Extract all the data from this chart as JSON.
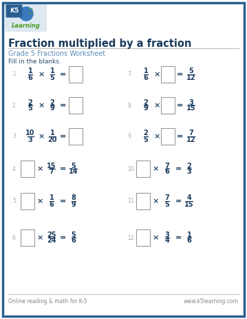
{
  "title": "Fraction multiplied by a fraction",
  "subtitle": "Grade 5 Fractions Worksheet",
  "instruction": "Fill in the blanks.",
  "border_color": "#2a5f8f",
  "title_color": "#1a3a5c",
  "subtitle_color": "#5b8db8",
  "text_color": "#2b4a6a",
  "number_color": "#aaaaaa",
  "frac_color": "#1a3a5c",
  "footer_left": "Online reading & math for K-5",
  "footer_right": "www.k5learning.com",
  "footer_color": "#888888",
  "bg_color": "#ffffff",
  "fig_width": 3.59,
  "fig_height": 4.63,
  "dpi": 100,
  "problems": [
    {
      "num": "1",
      "type": "compute",
      "left_num": "1",
      "left_den": "6",
      "right_num": "1",
      "right_den": "5",
      "col": 0,
      "row": 0
    },
    {
      "num": "2",
      "type": "compute",
      "left_num": "2",
      "left_den": "5",
      "right_num": "2",
      "right_den": "9",
      "col": 0,
      "row": 1
    },
    {
      "num": "3",
      "type": "compute",
      "left_num": "10",
      "left_den": "3",
      "right_num": "1",
      "right_den": "20",
      "col": 0,
      "row": 2
    },
    {
      "num": "4",
      "type": "missing_left",
      "known_num": "15",
      "known_den": "7",
      "result_num": "5",
      "result_den": "14",
      "col": 0,
      "row": 3
    },
    {
      "num": "5",
      "type": "missing_left",
      "known_num": "1",
      "known_den": "6",
      "result_num": "8",
      "result_den": "9",
      "col": 0,
      "row": 4
    },
    {
      "num": "6",
      "type": "missing_left",
      "known_num": "25",
      "known_den": "24",
      "result_num": "5",
      "result_den": "6",
      "col": 0,
      "row": 5
    },
    {
      "num": "7",
      "type": "missing_right",
      "left_num": "1",
      "left_den": "6",
      "result_num": "5",
      "result_den": "12",
      "col": 1,
      "row": 0
    },
    {
      "num": "8",
      "type": "missing_right",
      "left_num": "2",
      "left_den": "9",
      "result_num": "3",
      "result_den": "15",
      "col": 1,
      "row": 1
    },
    {
      "num": "9",
      "type": "missing_right",
      "left_num": "2",
      "left_den": "5",
      "result_num": "7",
      "result_den": "12",
      "col": 1,
      "row": 2
    },
    {
      "num": "10",
      "type": "missing_left",
      "known_num": "7",
      "known_den": "6",
      "result_num": "2",
      "result_den": "3",
      "col": 1,
      "row": 3
    },
    {
      "num": "11",
      "type": "missing_left",
      "known_num": "7",
      "known_den": "5",
      "result_num": "4",
      "result_den": "15",
      "col": 1,
      "row": 4
    },
    {
      "num": "12",
      "type": "missing_left",
      "known_num": "3",
      "known_den": "4",
      "result_num": "1",
      "result_den": "6",
      "col": 1,
      "row": 5
    }
  ]
}
